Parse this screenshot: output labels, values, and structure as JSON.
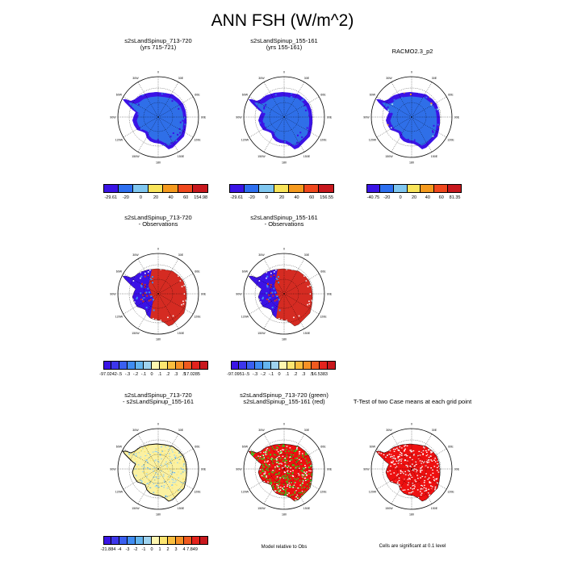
{
  "title": "ANN FSH (W/m^2)",
  "panels": [
    {
      "id": "p1",
      "title1": "s2sLandSpinup_713-720",
      "title2": "(yrs 715-721)",
      "colorbar": "cb1"
    },
    {
      "id": "p2",
      "title1": "s2sLandSpinup_155-161",
      "title2": "(yrs 155-161)",
      "colorbar": "cb2"
    },
    {
      "id": "p3",
      "title1": "RACMO2.3_p2",
      "title2": "",
      "colorbar": "cb3"
    },
    {
      "id": "p4",
      "title1": "s2sLandSpinup_713-720",
      "title2": "- Observations",
      "colorbar": "cb4"
    },
    {
      "id": "p5",
      "title1": "s2sLandSpinup_155-161",
      "title2": "- Observations",
      "colorbar": "cb5"
    },
    {
      "id": "p7",
      "title1": "s2sLandSpinup_713-720",
      "title2": "- s2sLandSpinup_155-161",
      "colorbar": "cb7"
    },
    {
      "id": "p8",
      "title1": "s2sLandSpinup_713-720 (green)",
      "title2": "s2sLandSpinup_155-161 (red)",
      "colorbar": ""
    },
    {
      "id": "p9",
      "title1": "T-Test of two Case means at each grid point",
      "title2": "",
      "colorbar": ""
    }
  ],
  "map_labels": {
    "lon": [
      "0",
      "30E",
      "60E",
      "90E",
      "120E",
      "150E",
      "180",
      "150W",
      "120W",
      "90W",
      "60W",
      "30W"
    ]
  },
  "colorbars": {
    "cb1": {
      "colors": [
        "#3a14e6",
        "#2d6ff0",
        "#7fc6ef",
        "#f8e45a",
        "#f59a1e",
        "#f0481d",
        "#c8181d"
      ],
      "labels": [
        "-29.61",
        "-20",
        "0",
        "20",
        "40",
        "60",
        "154.98"
      ]
    },
    "cb2": {
      "colors": [
        "#3a14e6",
        "#2d6ff0",
        "#7fc6ef",
        "#f8e45a",
        "#f59a1e",
        "#f0481d",
        "#c8181d"
      ],
      "labels": [
        "-29.61",
        "-20",
        "0",
        "20",
        "40",
        "60",
        "156.55"
      ]
    },
    "cb3": {
      "colors": [
        "#3a14e6",
        "#2d6ff0",
        "#7fc6ef",
        "#f8e45a",
        "#f59a1e",
        "#f0481d",
        "#c8181d"
      ],
      "labels": [
        "-40.75",
        "-20",
        "0",
        "20",
        "40",
        "60",
        "81.35"
      ]
    },
    "cb4": {
      "colors": [
        "#3a14e6",
        "#3d36ec",
        "#3a5ff0",
        "#3f8cf2",
        "#64b5ef",
        "#9fd3ef",
        "#fdf6b0",
        "#fce570",
        "#f9be3f",
        "#f69126",
        "#ef5a1f",
        "#e3231d",
        "#c8181d"
      ],
      "labels": [
        "-97.0242",
        "-.5",
        "-.3",
        "-.2",
        "-.1",
        "0",
        ".1",
        ".2",
        ".3",
        ".5",
        "17.0285"
      ]
    },
    "cb5": {
      "colors": [
        "#3a14e6",
        "#3d36ec",
        "#3a5ff0",
        "#3f8cf2",
        "#64b5ef",
        "#9fd3ef",
        "#fdf6b0",
        "#fce570",
        "#f9be3f",
        "#f69126",
        "#ef5a1f",
        "#e3231d",
        "#c8181d"
      ],
      "labels": [
        "-97.0951",
        "-.5",
        "-.3",
        "-.2",
        "-.1",
        "0",
        ".1",
        ".2",
        ".3",
        ".5",
        "16.5383"
      ]
    },
    "cb7": {
      "colors": [
        "#3a14e6",
        "#3d36ec",
        "#3a5ff0",
        "#3f8cf2",
        "#64b5ef",
        "#9fd3ef",
        "#fdf6b0",
        "#fce570",
        "#f9be3f",
        "#f69126",
        "#ef5a1f",
        "#e3231d",
        "#c8181d"
      ],
      "labels": [
        "-21.884",
        "-4",
        "-3",
        "-2",
        "-1",
        "0",
        "1",
        "2",
        "3",
        "4",
        "7.849"
      ]
    }
  },
  "notes": {
    "model_relative": "Model relative to Obs",
    "significance": "Cells are significant at 0.1 level"
  },
  "colors": {
    "base_blue": "#2f6fe8",
    "edge_purple": "#3b12e6",
    "diff_red": "#d52b22",
    "diff_yellow": "#fbf1a1",
    "diff_light_blue": "#9cd3ef",
    "green": "#1ee01e",
    "red": "#ee1010",
    "orange": "#f59a1e"
  }
}
